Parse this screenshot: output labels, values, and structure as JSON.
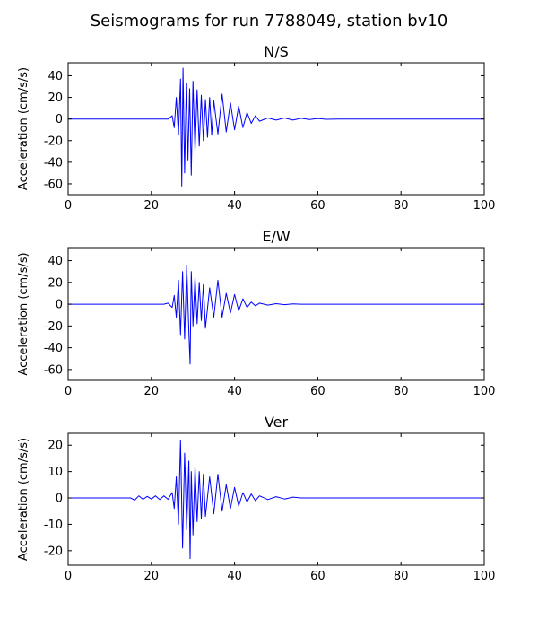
{
  "figure": {
    "title": "Seismograms for run 7788049, station bv10"
  },
  "chart_data": [
    {
      "type": "line",
      "title": "N/S",
      "xlabel": "",
      "ylabel": "Acceleration (cm/s/s)",
      "xlim": [
        0,
        100
      ],
      "ylim": [
        -70,
        52
      ],
      "xticks": [
        0,
        20,
        40,
        60,
        80,
        100
      ],
      "yticks": [
        -60,
        -40,
        -20,
        0,
        20,
        40
      ],
      "grid": false,
      "color": "#0000ff",
      "series": [
        {
          "x": [
            0,
            10,
            20,
            24,
            25,
            25.5,
            26,
            26.5,
            27,
            27.3,
            27.6,
            28,
            28.4,
            28.8,
            29.2,
            29.6,
            30,
            30.5,
            31,
            31.5,
            32,
            32.5,
            33,
            33.5,
            34,
            34.5,
            35,
            36,
            37,
            38,
            39,
            40,
            41,
            42,
            43,
            44,
            45,
            46,
            48,
            50,
            52,
            54,
            56,
            58,
            60,
            62,
            65,
            70,
            80,
            90,
            100
          ],
          "y": [
            0,
            0,
            0,
            0,
            3,
            -8,
            20,
            -15,
            37,
            -62,
            47,
            -50,
            33,
            -38,
            28,
            -52,
            35,
            -30,
            27,
            -25,
            22,
            -20,
            18,
            -17,
            20,
            -15,
            17,
            -14,
            23,
            -12,
            15,
            -10,
            12,
            -8,
            6,
            -4,
            3,
            -2,
            1,
            -1,
            1,
            -1,
            0.6,
            -0.5,
            0.5,
            -0.3,
            0,
            0,
            0,
            0,
            0
          ]
        }
      ]
    },
    {
      "type": "line",
      "title": "E/W",
      "xlabel": "",
      "ylabel": "Acceleration (cm/s/s)",
      "xlim": [
        0,
        100
      ],
      "ylim": [
        -70,
        52
      ],
      "xticks": [
        0,
        20,
        40,
        60,
        80,
        100
      ],
      "yticks": [
        -60,
        -40,
        -20,
        0,
        20,
        40
      ],
      "grid": false,
      "color": "#0000ff",
      "series": [
        {
          "x": [
            0,
            10,
            20,
            23,
            24,
            25,
            25.5,
            26,
            26.5,
            27,
            27.5,
            28,
            28.5,
            29,
            29.3,
            29.6,
            30,
            30.5,
            31,
            31.5,
            32,
            32.5,
            33,
            34,
            35,
            36,
            37,
            38,
            39,
            40,
            41,
            42,
            43,
            44,
            45,
            46,
            48,
            50,
            52,
            54,
            56,
            60,
            65,
            70,
            80,
            90,
            100
          ],
          "y": [
            0,
            0,
            0,
            0,
            1,
            -3,
            8,
            -12,
            22,
            -28,
            30,
            -32,
            36,
            -25,
            -55,
            30,
            -20,
            25,
            -18,
            20,
            -15,
            18,
            -22,
            15,
            -12,
            22,
            -12,
            10,
            -8,
            9,
            -6,
            5,
            -3,
            2,
            -1.5,
            1,
            -0.8,
            0.5,
            -0.4,
            0.3,
            0,
            0,
            0,
            0,
            0,
            0,
            0
          ]
        }
      ]
    },
    {
      "type": "line",
      "title": "Ver",
      "xlabel": "",
      "ylabel": "Acceleration (cm/s/s)",
      "xlim": [
        0,
        100
      ],
      "ylim": [
        -25.5,
        24.5
      ],
      "xticks": [
        0,
        20,
        40,
        60,
        80,
        100
      ],
      "yticks": [
        -20,
        -10,
        0,
        10,
        20
      ],
      "grid": false,
      "color": "#0000ff",
      "series": [
        {
          "x": [
            0,
            10,
            15,
            16,
            17,
            18,
            19,
            20,
            21,
            22,
            23,
            24,
            25,
            25.5,
            26,
            26.5,
            27,
            27.5,
            28,
            28.5,
            29,
            29.3,
            29.6,
            30,
            30.5,
            31,
            31.5,
            32,
            32.5,
            33,
            34,
            35,
            36,
            37,
            38,
            39,
            40,
            41,
            42,
            43,
            44,
            45,
            46,
            48,
            50,
            52,
            54,
            56,
            60,
            65,
            70,
            80,
            90,
            100
          ],
          "y": [
            0,
            0,
            0,
            -0.8,
            0.8,
            -0.5,
            0.6,
            -0.4,
            0.8,
            -0.6,
            0.8,
            -0.5,
            2,
            -4,
            8,
            -10,
            22,
            -19,
            17,
            -12,
            14,
            -23,
            10,
            -14,
            12,
            -9,
            10,
            -8,
            9,
            -7,
            8,
            -6,
            9,
            -5,
            5,
            -4,
            4,
            -3,
            2,
            -1.5,
            1.5,
            -1,
            0.8,
            -0.6,
            0.5,
            -0.4,
            0.3,
            0,
            0,
            0,
            0,
            0,
            0,
            0
          ]
        }
      ]
    }
  ]
}
